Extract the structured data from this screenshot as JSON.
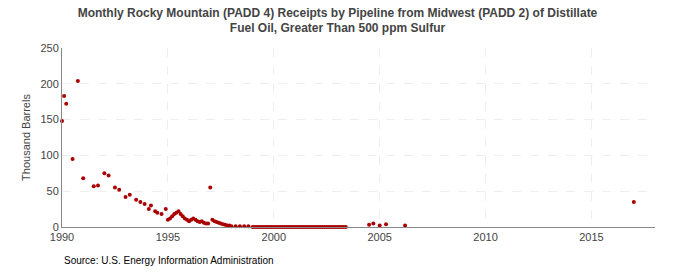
{
  "chart_data": {
    "type": "scatter",
    "title": "Monthly Rocky Mountain (PADD 4) Receipts by Pipeline from Midwest (PADD 2) of Distillate\nFuel Oil, Greater Than 500 ppm Sulfur",
    "y_label": "Thousand Barrels",
    "annotations": [
      "Source: U.S. Energy Information Administration"
    ],
    "color": "#aa0000",
    "marker": "circle",
    "grid": true,
    "xlim": [
      1990,
      2018
    ],
    "ylim": [
      0,
      250
    ],
    "xticks": [
      1990,
      1995,
      2000,
      2005,
      2010,
      2015
    ],
    "yticks": [
      0,
      50,
      100,
      150,
      200,
      250
    ],
    "x": [
      1990.0,
      1990.1,
      1990.2,
      1990.5,
      1990.75,
      1991.0,
      1991.5,
      1991.7,
      1992.0,
      1992.2,
      1992.5,
      1992.7,
      1993.0,
      1993.2,
      1993.5,
      1993.7,
      1993.9,
      1994.1,
      1994.2,
      1994.4,
      1994.5,
      1994.7,
      1994.9,
      1995.0,
      1995.1,
      1995.2,
      1995.3,
      1995.4,
      1995.5,
      1995.6,
      1995.7,
      1995.8,
      1995.9,
      1996.0,
      1996.1,
      1996.2,
      1996.3,
      1996.4,
      1996.5,
      1996.6,
      1996.7,
      1996.8,
      1996.9,
      1997.0,
      1997.1,
      1997.2,
      1997.3,
      1997.4,
      1997.5,
      1997.6,
      1997.7,
      1997.8,
      1997.9,
      1998.0,
      1998.2,
      1998.4,
      1998.6,
      1998.8,
      1999.0,
      1999.1,
      1999.2,
      1999.3,
      1999.4,
      1999.5,
      1999.6,
      1999.7,
      1999.8,
      1999.9,
      2000.0,
      2000.1,
      2000.2,
      2000.3,
      2000.4,
      2000.5,
      2000.6,
      2000.7,
      2000.8,
      2000.9,
      2001.0,
      2001.1,
      2001.2,
      2001.3,
      2001.4,
      2001.5,
      2001.6,
      2001.7,
      2001.8,
      2001.9,
      2002.0,
      2002.1,
      2002.2,
      2002.3,
      2002.4,
      2002.5,
      2002.6,
      2002.7,
      2002.8,
      2002.9,
      2003.0,
      2003.1,
      2003.2,
      2003.3,
      2003.4,
      2004.5,
      2004.7,
      2005.0,
      2005.3,
      2006.2,
      2017.0
    ],
    "values": [
      148,
      183,
      172,
      95,
      204,
      68,
      57,
      58,
      75,
      72,
      55,
      52,
      42,
      45,
      38,
      35,
      32,
      25,
      30,
      22,
      20,
      18,
      25,
      10,
      12,
      15,
      18,
      20,
      22,
      18,
      15,
      12,
      10,
      8,
      10,
      12,
      10,
      8,
      7,
      8,
      6,
      5,
      5,
      55,
      10,
      8,
      7,
      6,
      5,
      4,
      3,
      2,
      2,
      1,
      1,
      1,
      1,
      1,
      0,
      0,
      0,
      0,
      0,
      0,
      0,
      0,
      0,
      0,
      0,
      0,
      0,
      0,
      0,
      0,
      0,
      0,
      0,
      0,
      0,
      0,
      0,
      0,
      0,
      0,
      0,
      0,
      0,
      0,
      0,
      0,
      0,
      0,
      0,
      0,
      0,
      0,
      0,
      0,
      0,
      0,
      0,
      0,
      0,
      3,
      5,
      2,
      4,
      2,
      35
    ]
  }
}
